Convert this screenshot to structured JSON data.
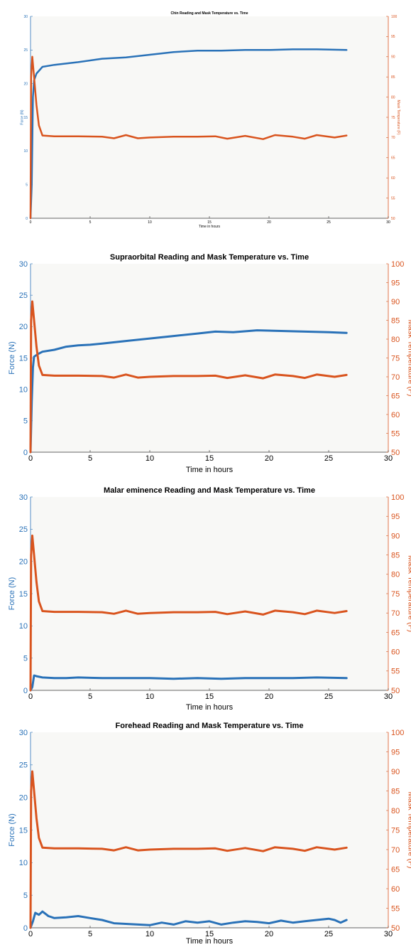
{
  "colors": {
    "force": "#2a72b8",
    "temperature": "#d9541e",
    "axis_text": "#000000",
    "plot_background": "#f8f8f6",
    "axis_line": "#333333"
  },
  "chart_data": [
    {
      "type": "line",
      "title": "Chin Reading and Mask Temperature vs. Time",
      "xlabel": "Time in hours",
      "ylabel_left": "Force (N)",
      "ylabel_right": "Mask Temperature (F)",
      "xlim": [
        0,
        30
      ],
      "ylim_left": [
        0,
        30
      ],
      "ylim_right": [
        50,
        100
      ],
      "xticks": [
        "0",
        "5",
        "10",
        "15",
        "20",
        "25",
        "30"
      ],
      "yticks_left": [
        "0",
        "5",
        "10",
        "15",
        "20",
        "25",
        "30"
      ],
      "yticks_right": [
        "50",
        "55",
        "60",
        "65",
        "70",
        "75",
        "80",
        "85",
        "90",
        "95",
        "100"
      ],
      "grid": false,
      "series": [
        {
          "name": "Force (N)",
          "axis": "left",
          "x": [
            0,
            0.1,
            0.2,
            0.3,
            0.5,
            1,
            2,
            4,
            6,
            8,
            10,
            12,
            14,
            16,
            18,
            20,
            22,
            24,
            26.5
          ],
          "y": [
            0,
            5,
            18,
            20.5,
            21.5,
            22.5,
            22.8,
            23.2,
            23.7,
            23.9,
            24.3,
            24.7,
            24.9,
            24.9,
            25,
            25,
            25.1,
            25.1,
            25
          ]
        },
        {
          "name": "Mask Temperature (F)",
          "axis": "right",
          "x": [
            0,
            0.05,
            0.15,
            0.3,
            0.5,
            0.7,
            1,
            2,
            4,
            6,
            7,
            8,
            9,
            10,
            12,
            14,
            15.5,
            16.5,
            18,
            19.5,
            20.5,
            22,
            23,
            24,
            25.5,
            26.5
          ],
          "y": [
            50,
            85,
            90,
            85,
            78,
            73,
            70.5,
            70.3,
            70.3,
            70.2,
            69.8,
            70.6,
            69.8,
            70,
            70.2,
            70.2,
            70.3,
            69.7,
            70.4,
            69.6,
            70.6,
            70.2,
            69.7,
            70.6,
            70,
            70.5
          ]
        }
      ]
    },
    {
      "type": "line",
      "title": "Supraorbital Reading and Mask Temperature vs. Time",
      "xlabel": "Time in hours",
      "ylabel_left": "Force (N)",
      "ylabel_right": "Mask Temperature (F)",
      "xlim": [
        0,
        30
      ],
      "ylim_left": [
        0,
        30
      ],
      "ylim_right": [
        50,
        100
      ],
      "xticks": [
        "0",
        "5",
        "10",
        "15",
        "20",
        "25",
        "30"
      ],
      "yticks_left": [
        "0",
        "5",
        "10",
        "15",
        "20",
        "25",
        "30"
      ],
      "yticks_right": [
        "50",
        "55",
        "60",
        "65",
        "70",
        "75",
        "80",
        "85",
        "90",
        "95",
        "100"
      ],
      "grid": false,
      "series": [
        {
          "name": "Force (N)",
          "axis": "left",
          "x": [
            0,
            0.1,
            0.2,
            0.3,
            0.6,
            1,
            2,
            3,
            4,
            5,
            6,
            8,
            10,
            12,
            14,
            15.5,
            17,
            19,
            21,
            23,
            25,
            26.5
          ],
          "y": [
            0,
            8,
            13.5,
            15.2,
            15.6,
            16,
            16.3,
            16.8,
            17,
            17.1,
            17.3,
            17.7,
            18.1,
            18.5,
            18.9,
            19.2,
            19.1,
            19.4,
            19.3,
            19.2,
            19.1,
            19
          ]
        },
        {
          "name": "Mask Temperature (F)",
          "axis": "right",
          "x": [
            0,
            0.05,
            0.15,
            0.3,
            0.5,
            0.7,
            1,
            2,
            4,
            6,
            7,
            8,
            9,
            10,
            12,
            14,
            15.5,
            16.5,
            18,
            19.5,
            20.5,
            22,
            23,
            24,
            25.5,
            26.5
          ],
          "y": [
            50,
            85,
            90,
            85,
            78,
            73,
            70.5,
            70.3,
            70.3,
            70.2,
            69.8,
            70.6,
            69.8,
            70,
            70.2,
            70.2,
            70.3,
            69.7,
            70.4,
            69.6,
            70.6,
            70.2,
            69.7,
            70.6,
            70,
            70.5
          ]
        }
      ]
    },
    {
      "type": "line",
      "title": "Malar eminence Reading and Mask Temperature vs. Time",
      "xlabel": "Time in hours",
      "ylabel_left": "Force (N)",
      "ylabel_right": "Mask Temperature (F)",
      "xlim": [
        0,
        30
      ],
      "ylim_left": [
        0,
        30
      ],
      "ylim_right": [
        50,
        100
      ],
      "xticks": [
        "0",
        "5",
        "10",
        "15",
        "20",
        "25",
        "30"
      ],
      "yticks_left": [
        "0",
        "5",
        "10",
        "15",
        "20",
        "25",
        "30"
      ],
      "yticks_right": [
        "50",
        "55",
        "60",
        "65",
        "70",
        "75",
        "80",
        "85",
        "90",
        "95",
        "100"
      ],
      "grid": false,
      "series": [
        {
          "name": "Force (N)",
          "axis": "left",
          "x": [
            0,
            0.15,
            0.3,
            0.5,
            1,
            2,
            3,
            4,
            6,
            8,
            10,
            12,
            14,
            16,
            18,
            20,
            22,
            24,
            26.5
          ],
          "y": [
            0,
            0.5,
            2.3,
            2.2,
            2,
            1.9,
            1.9,
            2,
            1.9,
            1.9,
            1.9,
            1.8,
            1.9,
            1.8,
            1.9,
            1.9,
            1.9,
            2,
            1.9
          ]
        },
        {
          "name": "Mask Temperature (F)",
          "axis": "right",
          "x": [
            0,
            0.05,
            0.15,
            0.3,
            0.5,
            0.7,
            1,
            2,
            4,
            6,
            7,
            8,
            9,
            10,
            12,
            14,
            15.5,
            16.5,
            18,
            19.5,
            20.5,
            22,
            23,
            24,
            25.5,
            26.5
          ],
          "y": [
            50,
            85,
            90,
            85,
            78,
            73,
            70.5,
            70.3,
            70.3,
            70.2,
            69.8,
            70.6,
            69.8,
            70,
            70.2,
            70.2,
            70.3,
            69.7,
            70.4,
            69.6,
            70.6,
            70.2,
            69.7,
            70.6,
            70,
            70.5
          ]
        }
      ]
    },
    {
      "type": "line",
      "title": "Forehead Reading and Mask Temperature vs. Time",
      "xlabel": "Time in hours",
      "ylabel_left": "Force (N)",
      "ylabel_right": "Mask Temperature (F)",
      "xlim": [
        0,
        30
      ],
      "ylim_left": [
        0,
        30
      ],
      "ylim_right": [
        50,
        100
      ],
      "xticks": [
        "0",
        "5",
        "10",
        "15",
        "20",
        "25",
        "30"
      ],
      "yticks_left": [
        "0",
        "5",
        "10",
        "15",
        "20",
        "25",
        "30"
      ],
      "yticks_right": [
        "50",
        "55",
        "60",
        "65",
        "70",
        "75",
        "80",
        "85",
        "90",
        "95",
        "100"
      ],
      "grid": false,
      "series": [
        {
          "name": "Force (N)",
          "axis": "left",
          "x": [
            0,
            0.2,
            0.4,
            0.7,
            1,
            1.5,
            2,
            3,
            4,
            5,
            6,
            7,
            8,
            9,
            10,
            11,
            12,
            13,
            14,
            15,
            16,
            17,
            18,
            19,
            20,
            21,
            22,
            23,
            24,
            25,
            25.5,
            26,
            26.5
          ],
          "y": [
            0,
            1,
            2.3,
            2,
            2.5,
            1.8,
            1.5,
            1.6,
            1.8,
            1.5,
            1.2,
            0.7,
            0.6,
            0.5,
            0.4,
            0.8,
            0.5,
            1,
            0.8,
            1,
            0.5,
            0.8,
            1,
            0.9,
            0.7,
            1.1,
            0.8,
            1,
            1.2,
            1.4,
            1.2,
            0.8,
            1.2
          ]
        },
        {
          "name": "Mask Temperature (F)",
          "axis": "right",
          "x": [
            0,
            0.05,
            0.15,
            0.3,
            0.5,
            0.7,
            1,
            2,
            4,
            6,
            7,
            8,
            9,
            10,
            12,
            14,
            15.5,
            16.5,
            18,
            19.5,
            20.5,
            22,
            23,
            24,
            25.5,
            26.5
          ],
          "y": [
            50,
            85,
            90,
            85,
            78,
            73,
            70.5,
            70.3,
            70.3,
            70.2,
            69.8,
            70.6,
            69.8,
            70,
            70.2,
            70.2,
            70.3,
            69.7,
            70.4,
            69.6,
            70.6,
            70.2,
            69.7,
            70.6,
            70,
            70.5
          ]
        }
      ]
    }
  ]
}
